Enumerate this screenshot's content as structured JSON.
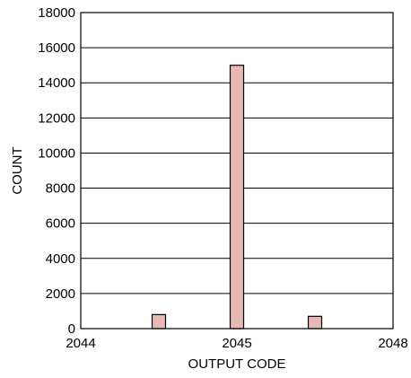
{
  "chart_data": {
    "type": "bar",
    "xlabel": "OUTPUT CODE",
    "ylabel": "COUNT",
    "ylim": [
      0,
      18000
    ],
    "y_ticks": [
      0,
      2000,
      4000,
      6000,
      8000,
      10000,
      12000,
      14000,
      16000,
      18000
    ],
    "x_ticks": [
      "2044",
      "2045",
      "2048"
    ],
    "categories": [
      "2044.5",
      "2045",
      "2045.5"
    ],
    "values": [
      800,
      15000,
      700
    ],
    "grid": true,
    "colors": {
      "bar_fill": "#e8b8b4",
      "bar_stroke": "#000000",
      "grid": "#000000",
      "frame": "#000000"
    }
  }
}
